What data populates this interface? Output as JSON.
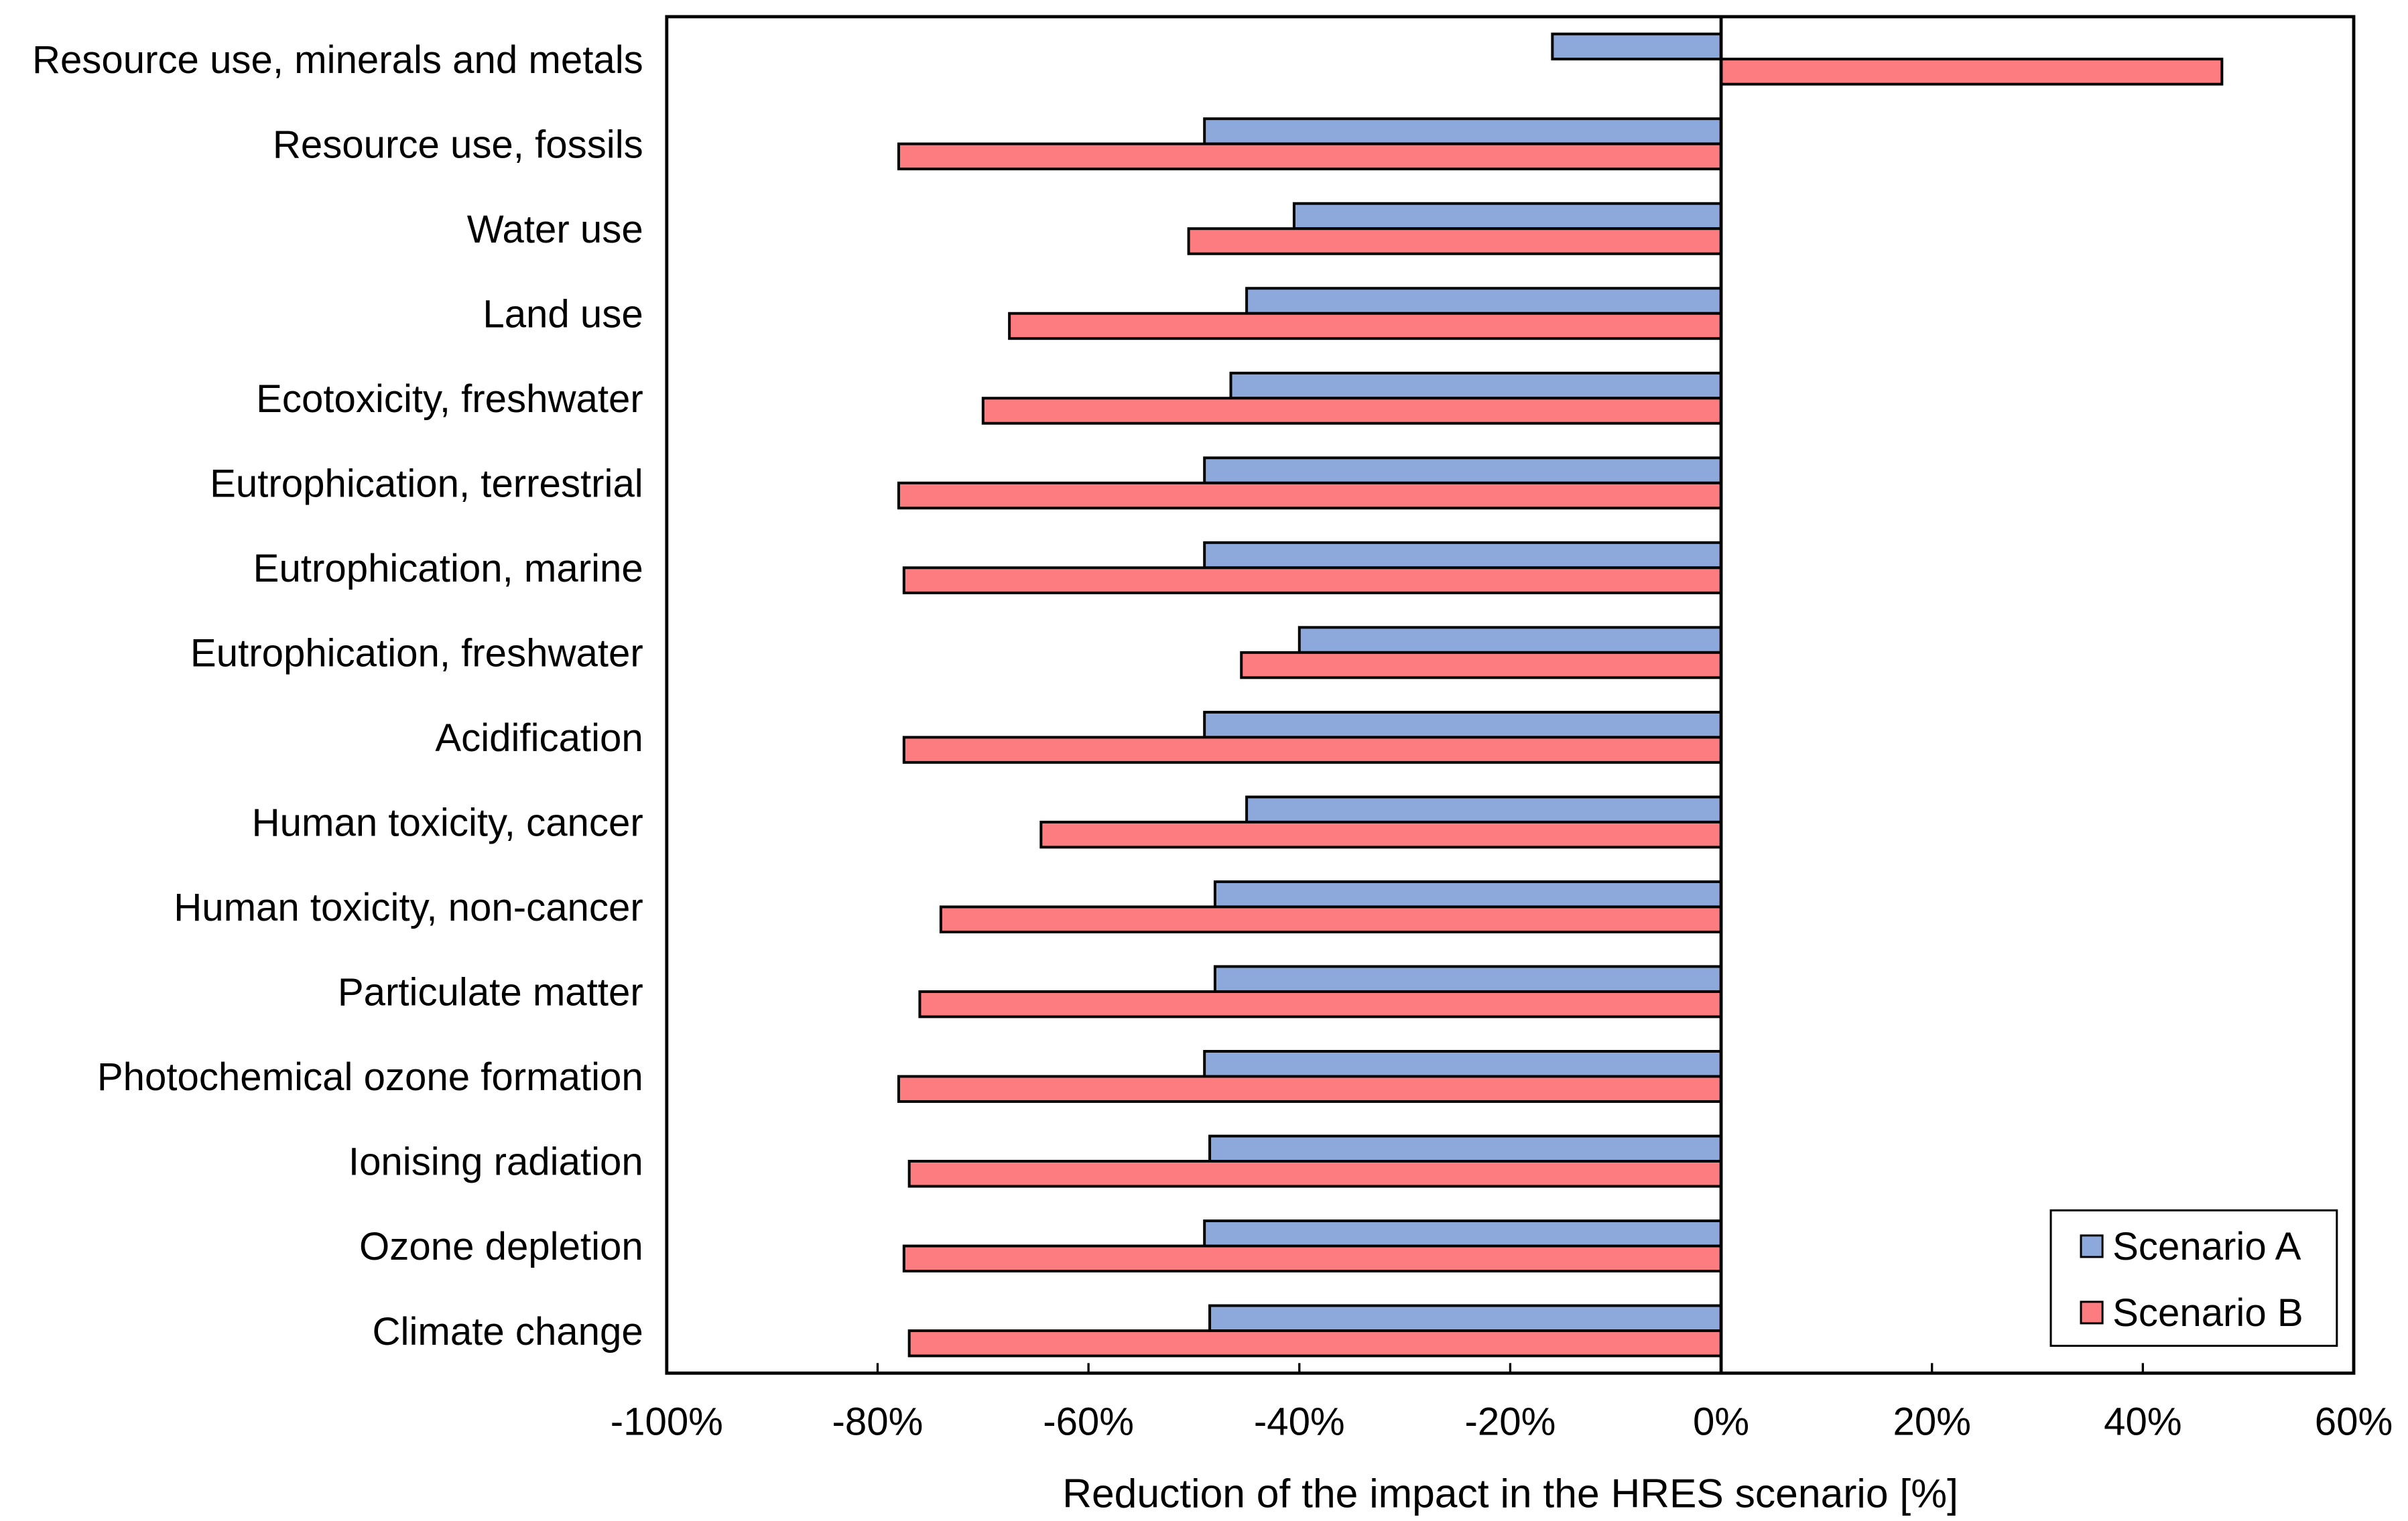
{
  "chart_data": {
    "type": "bar",
    "orientation": "horizontal",
    "title": "",
    "xlabel": "Reduction of the impact in the HRES scenario [%]",
    "ylabel": "",
    "xlim": [
      -100,
      60
    ],
    "grid": false,
    "categories": [
      "Resource use, minerals and metals",
      "Resource use, fossils",
      "Water use",
      "Land use",
      "Ecotoxicity, freshwater",
      "Eutrophication, terrestrial",
      "Eutrophication, marine",
      "Eutrophication, freshwater",
      "Acidification",
      "Human toxicity, cancer",
      "Human toxicity, non-cancer",
      "Particulate matter",
      "Photochemical ozone formation",
      "Ionising radiation",
      "Ozone depletion",
      "Climate change"
    ],
    "series": [
      {
        "name": "Scenario A",
        "color": "#8DA9DC",
        "values": [
          -16,
          -49,
          -40.5,
          -45,
          -46.5,
          -49,
          -49,
          -40,
          -49,
          -45,
          -48,
          -48,
          -49,
          -48.5,
          -49,
          -48.5
        ]
      },
      {
        "name": "Scenario B",
        "color": "#FC7C80",
        "values": [
          47.5,
          -78,
          -50.5,
          -67.5,
          -70,
          -78,
          -77.5,
          -45.5,
          -77.5,
          -64.5,
          -74,
          -76,
          -78,
          -77,
          -77.5,
          -77
        ]
      }
    ],
    "xtick_values": [
      -100,
      -80,
      -60,
      -40,
      -20,
      0,
      20,
      40,
      60
    ],
    "xtick_labels": [
      "-100%",
      "-80%",
      "-60%",
      "-40%",
      "-20%",
      "0%",
      "20%",
      "40%",
      "60%"
    ],
    "legend": {
      "position": "inside-bottom-right",
      "items": [
        "Scenario A",
        "Scenario B"
      ]
    },
    "style": {
      "bar_outline_color": "#000000",
      "axis_color": "#000000",
      "text_color": "#000000",
      "background_color": "#FFFFFF"
    }
  }
}
